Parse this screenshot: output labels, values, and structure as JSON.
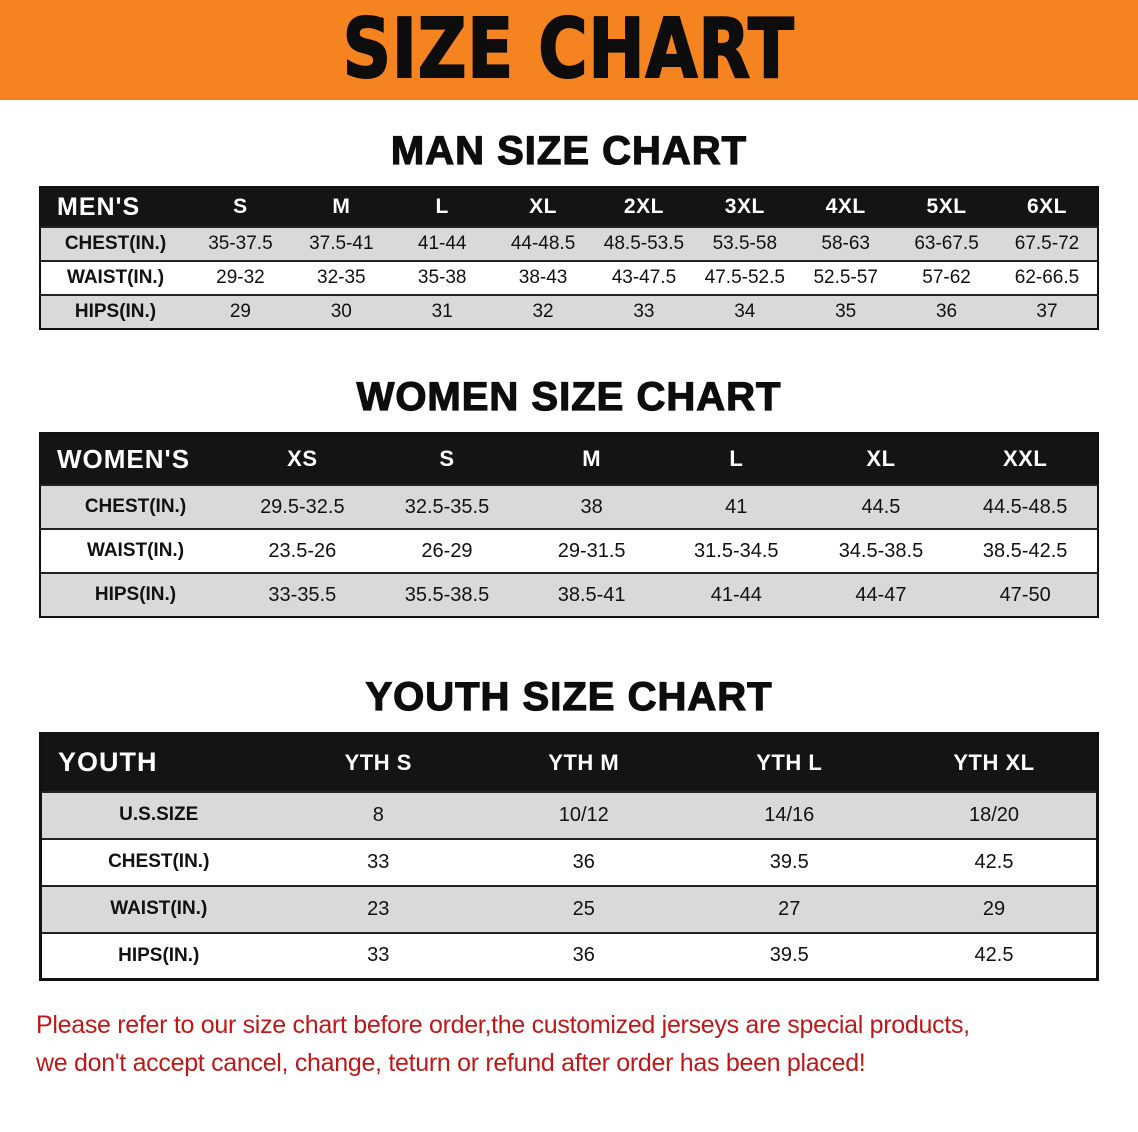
{
  "banner": {
    "title": "SIZE CHART"
  },
  "sections": [
    {
      "heading": "MAN SIZE CHART",
      "css": "men",
      "table": {
        "header": [
          "MEN'S",
          "S",
          "M",
          "L",
          "XL",
          "2XL",
          "3XL",
          "4XL",
          "5XL",
          "6XL"
        ],
        "rows": [
          [
            "CHEST(IN.)",
            "35-37.5",
            "37.5-41",
            "41-44",
            "44-48.5",
            "48.5-53.5",
            "53.5-58",
            "58-63",
            "63-67.5",
            "67.5-72"
          ],
          [
            "WAIST(IN.)",
            "29-32",
            "32-35",
            "35-38",
            "38-43",
            "43-47.5",
            "47.5-52.5",
            "52.5-57",
            "57-62",
            "62-66.5"
          ],
          [
            "HIPS(IN.)",
            "29",
            "30",
            "31",
            "32",
            "33",
            "34",
            "35",
            "36",
            "37"
          ]
        ]
      }
    },
    {
      "heading": "WOMEN SIZE CHART",
      "css": "women",
      "table": {
        "header": [
          "WOMEN'S",
          "XS",
          "S",
          "M",
          "L",
          "XL",
          "XXL"
        ],
        "rows": [
          [
            "CHEST(IN.)",
            "29.5-32.5",
            "32.5-35.5",
            "38",
            "41",
            "44.5",
            "44.5-48.5"
          ],
          [
            "WAIST(IN.)",
            "23.5-26",
            "26-29",
            "29-31.5",
            "31.5-34.5",
            "34.5-38.5",
            "38.5-42.5"
          ],
          [
            "HIPS(IN.)",
            "33-35.5",
            "35.5-38.5",
            "38.5-41",
            "41-44",
            "44-47",
            "47-50"
          ]
        ]
      }
    },
    {
      "heading": "YOUTH SIZE CHART",
      "css": "youth",
      "table": {
        "header": [
          "YOUTH",
          "YTH S",
          "YTH M",
          "YTH L",
          "YTH XL"
        ],
        "rows": [
          [
            "U.S.SIZE",
            "8",
            "10/12",
            "14/16",
            "18/20"
          ],
          [
            "CHEST(IN.)",
            "33",
            "36",
            "39.5",
            "42.5"
          ],
          [
            "WAIST(IN.)",
            "23",
            "25",
            "27",
            "29"
          ],
          [
            "HIPS(IN.)",
            "33",
            "36",
            "39.5",
            "42.5"
          ]
        ]
      }
    }
  ],
  "disclaimer": {
    "line1": "Please refer to our size chart before order,the customized jerseys are special products,",
    "line2": "we don't accept cancel, change, teturn or refund after order has been placed!"
  },
  "colors": {
    "banner_bg": "#F5831F",
    "table_header_bg": "#141414",
    "row_shaded": "#D9D9D9",
    "disclaimer_red": "#C01818"
  }
}
